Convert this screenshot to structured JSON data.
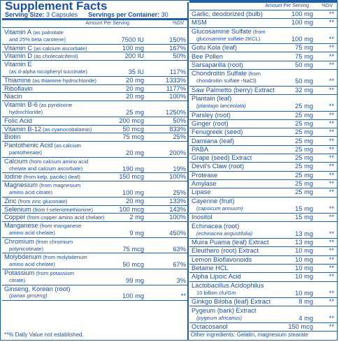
{
  "title": "Supplement Facts",
  "serving_size_label": "Serving Size:",
  "serving_size_value": "3 Capsules",
  "servings_label": "Servings per Container:",
  "servings_value": "30",
  "col_amount": "Amount Per Serving",
  "col_dv": "%DV",
  "left_rows": [
    {
      "name": "Vitamin A",
      "sub": " (as palmitate",
      "line2": "and 25% beta carotene)",
      "amount": "7500 IU",
      "dv": "150%"
    },
    {
      "name": "Vitamin C",
      "sub": " (as calcium ascorbate)",
      "line2": "",
      "amount": "100 mg",
      "dv": "167%"
    },
    {
      "name": "Vitamin D",
      "sub": " (as cholecalciferol)",
      "line2": "",
      "amount": "200 IU",
      "dv": "50%"
    },
    {
      "name": "Vitamin E",
      "sub": "",
      "line2": "(as d-alpha tocopheryl succinate)",
      "amount": "35 IU",
      "dv": "117%"
    },
    {
      "name": "Thiamine",
      "sub": " (as thiamine hydrochloride)",
      "line2": "",
      "amount": "20 mg",
      "dv": "1333%"
    },
    {
      "name": "Riboflavin",
      "sub": "",
      "line2": "",
      "amount": "20 mg",
      "dv": "1177%"
    },
    {
      "name": "Niacin",
      "sub": "",
      "line2": "",
      "amount": "20 mg",
      "dv": "100%"
    },
    {
      "name": "Vitamin B-6",
      "sub": " (as pyridoxine",
      "line2": "hydrochloride)",
      "amount": "25 mg",
      "dv": "1250%"
    },
    {
      "name": "Folic Acid",
      "sub": "",
      "line2": "",
      "amount": "200 mcg",
      "dv": "50%"
    },
    {
      "name": "Vitamin B-12",
      "sub": " (as cyanocobalamin)",
      "line2": "",
      "amount": "50 mcg",
      "dv": "833%"
    },
    {
      "name": "Biotin",
      "sub": "",
      "line2": "",
      "amount": "75 mcg",
      "dv": "25%"
    },
    {
      "name": "Pantothenic Acid",
      "sub": " (as calcium",
      "line2": "pantothenate)",
      "amount": "20 mg",
      "dv": "200%"
    },
    {
      "name": "Calcium",
      "sub": " (from calcium amino acid",
      "line2": "chelate and calcium ascorbate)",
      "amount": "190 mg",
      "dv": "19%"
    },
    {
      "name": "Iodine",
      "sub": " (from kelp, pacific) (leaf)",
      "line2": "",
      "amount": "150 mcg",
      "dv": "100%"
    },
    {
      "name": "Magnesium",
      "sub": " (from magnesium",
      "line2": "amino acid citrate)",
      "amount": "100 mg",
      "dv": "25%"
    },
    {
      "name": "Zinc",
      "sub": " (from zinc gluconate)",
      "line2": "",
      "amount": "20 mg",
      "dv": "133%"
    },
    {
      "name": "Selenium",
      "sub": " (from l-selenomethionine)",
      "line2": "",
      "amount": "100 mcg",
      "dv": "143%"
    },
    {
      "name": "Copper",
      "sub": " (from copper amino acid chelate)",
      "line2": "",
      "amount": "2 mg",
      "dv": "100%"
    },
    {
      "name": "Manganese",
      "sub": " (from manganese",
      "line2": "amino acid chelate)",
      "amount": "9 mg",
      "dv": "450%"
    },
    {
      "name": "Chromium",
      "sub": " (from chromium",
      "line2": "polynicotinate)",
      "amount": "75 mcg",
      "dv": "63%"
    },
    {
      "name": "Molybdenum",
      "sub": " (from molybdenum",
      "line2": "amino acid chelate)",
      "amount": "50 mcg",
      "dv": "67%"
    },
    {
      "name": "Potassium",
      "sub": " (from potassium",
      "line2": "citrate)",
      "amount": "99 mg",
      "dv": "3%"
    },
    {
      "name": "Ginseng, Korean (root)",
      "sub": "",
      "line2": "(panax ginseng)",
      "amount": "100 mg",
      "dv": "**"
    }
  ],
  "footnote": "**% Daily Value not established.",
  "right_rows": [
    {
      "name": "Garlic, deodorized (bulb)",
      "sub": "",
      "line2": "",
      "amount": "100 mg",
      "dv": "**"
    },
    {
      "name": "MSM",
      "sub": "",
      "line2": "",
      "amount": "100 mg",
      "dv": "**"
    },
    {
      "name": "Glucosamine Sulfate",
      "sub": " (from",
      "line2": "glucosamine sulfate-2KCL)",
      "amount": "100 mg",
      "dv": "**"
    },
    {
      "name": "Gotu Kola (leaf)",
      "sub": "",
      "line2": "",
      "amount": "75 mg",
      "dv": "**"
    },
    {
      "name": "Bee Pollen",
      "sub": "",
      "line2": "",
      "amount": "75 mg",
      "dv": "**"
    },
    {
      "name": "Sarsaparilla (root)",
      "sub": "",
      "line2": "",
      "amount": "50 mg",
      "dv": "**"
    },
    {
      "name": "Chondroitin Sulfate",
      "sub": " (from",
      "line2": "chondroitin sulfate -NaCl)",
      "amount": "50 mg",
      "dv": "**"
    },
    {
      "name": "Saw Palmetto (berry) Extract",
      "sub": "",
      "line2": "",
      "amount": "32 mg",
      "dv": "**"
    },
    {
      "name": "Plantain (leaf)",
      "sub": "",
      "line2": "(plantago lanceolata)",
      "amount": "25 mg",
      "dv": "**"
    },
    {
      "name": "Parsley (root)",
      "sub": "",
      "line2": "",
      "amount": "25 mg",
      "dv": "**"
    },
    {
      "name": "Ginger (root)",
      "sub": "",
      "line2": "",
      "amount": "25 mg",
      "dv": "**"
    },
    {
      "name": "Fenugreek (seed)",
      "sub": "",
      "line2": "",
      "amount": "25 mg",
      "dv": "**"
    },
    {
      "name": "Damiana (leaf)",
      "sub": "",
      "line2": "",
      "amount": "25 mg",
      "dv": "**"
    },
    {
      "name": "PABA",
      "sub": "",
      "line2": "",
      "amount": "25 mg",
      "dv": "**"
    },
    {
      "name": "Grape (seed) Extract",
      "sub": "",
      "line2": "",
      "amount": "25 mg",
      "dv": "**"
    },
    {
      "name": "Devil's Claw (root)",
      "sub": "",
      "line2": "",
      "amount": "25 mg",
      "dv": "**"
    },
    {
      "name": "Protease",
      "sub": "",
      "line2": "",
      "amount": "25 mg",
      "dv": "**"
    },
    {
      "name": "Amylase",
      "sub": "",
      "line2": "",
      "amount": "25 mg",
      "dv": "**"
    },
    {
      "name": "Lipase",
      "sub": "",
      "line2": "",
      "amount": "25 mg",
      "dv": "**"
    },
    {
      "name": "Cayenne (fruit)",
      "sub": "",
      "line2": "(capsicum annuum)",
      "amount": "15 mg",
      "dv": "**"
    },
    {
      "name": "Inositol",
      "sub": "",
      "line2": "",
      "amount": "15 mg",
      "dv": "**"
    },
    {
      "name": "Echinacea (root)",
      "sub": "",
      "line2": "(echinacea angustifolia)",
      "amount": "13 mg",
      "dv": "**"
    },
    {
      "name": "Muira Puama (leaf) Extract",
      "sub": "",
      "line2": "",
      "amount": "13 mg",
      "dv": "**"
    },
    {
      "name": "Eleuthero (root) Extract",
      "sub": "",
      "line2": "",
      "amount": "10 mg",
      "dv": "**"
    },
    {
      "name": "Lemon Bioflavonoids",
      "sub": "",
      "line2": "",
      "amount": "10 mg",
      "dv": "**"
    },
    {
      "name": "Betaine HCL",
      "sub": "",
      "line2": "",
      "amount": "10 mg",
      "dv": "**"
    },
    {
      "name": "Alpha Lipoic Acid",
      "sub": "",
      "line2": "",
      "amount": "10 mg",
      "dv": "**"
    },
    {
      "name": "Lactobacillus Acidophilus",
      "sub": "",
      "line2": "10 billion cfu/Gm",
      "amount": "10 mg",
      "dv": "**"
    },
    {
      "name": "Ginkgo Biloba (leaf) Extract",
      "sub": "",
      "line2": "",
      "amount": "8 mg",
      "dv": "**"
    },
    {
      "name": "Pygeum (bark) Extract",
      "sub": "",
      "line2": "(pygeum africanus)",
      "amount": "4 mg",
      "dv": "**"
    },
    {
      "name": "Octacosanol",
      "sub": "",
      "line2": "",
      "amount": "150 mcg",
      "dv": "**"
    }
  ],
  "other_ingredients": "Other ingredients: Gelatin, magnesium stearate"
}
